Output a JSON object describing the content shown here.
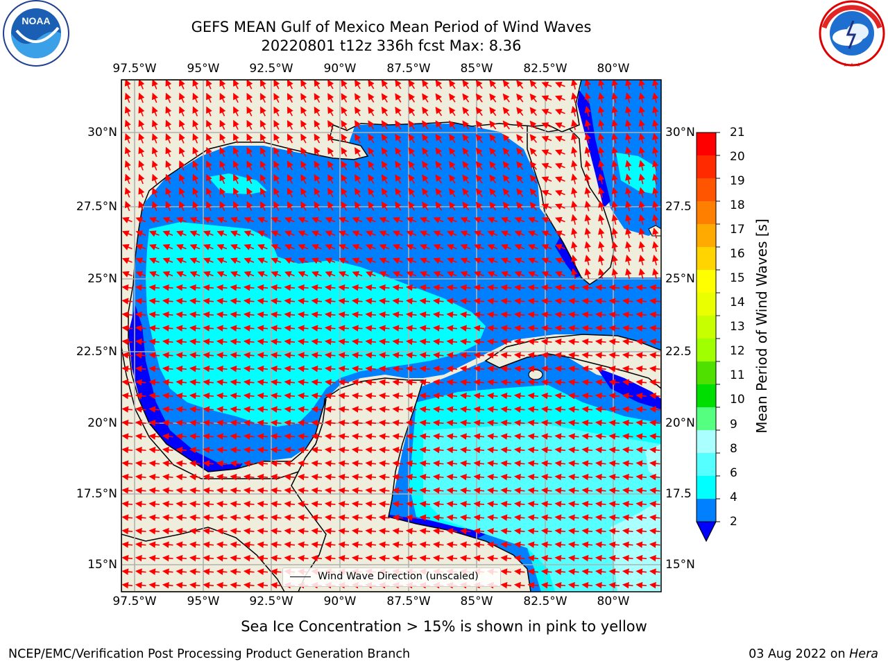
{
  "header": {
    "title_line1": "GEFS MEAN Gulf of Mexico Mean Period of Wind Waves",
    "title_line2": "20220801 t12z 336h fcst   Max: 8.36"
  },
  "logos": {
    "noaa_text": "NOAA",
    "noaa_ring_text": "NATIONAL OCEANIC AND ATMOSPHERIC ADMINISTRATION · U.S. DEPARTMENT OF COMMERCE",
    "nws_ring_text": "NATIONAL WEATHER SERVICE"
  },
  "axes": {
    "longitude_ticks": [
      "97.5°W",
      "95°W",
      "92.5°W",
      "90°W",
      "87.5°W",
      "85°W",
      "82.5°W",
      "80°W"
    ],
    "latitude_ticks_left": [
      "30°N",
      "27.5°N",
      "25°N",
      "22.5°N",
      "20°N",
      "17.5°N",
      "15°N"
    ],
    "latitude_ticks_right": [
      "30°N",
      "27.5",
      "25°N",
      "22.5",
      "20°N",
      "17.5",
      "15°N"
    ]
  },
  "colorbar": {
    "title": "Mean Period of Wind Waves [s]",
    "labels": [
      "21",
      "20",
      "19",
      "18",
      "17",
      "16",
      "15",
      "14",
      "13",
      "12",
      "11",
      "10",
      "9",
      "8",
      "6",
      "4",
      "2"
    ],
    "colors_top_to_bottom": [
      "#ff0000",
      "#ff2a00",
      "#ff5500",
      "#ff8000",
      "#ffaa00",
      "#ffd400",
      "#ffff00",
      "#eaff00",
      "#c8ff00",
      "#a0ff00",
      "#50e000",
      "#00dd00",
      "#55ff80",
      "#aaffff",
      "#55ffff",
      "#00ffff",
      "#0080ff"
    ],
    "extend_color": "#0000ff"
  },
  "map": {
    "colors": {
      "land": "#efeddc",
      "period_2_4": "#0080ff",
      "period_4_6": "#00ffff",
      "period_6_8": "#55ffff",
      "period_8_9": "#aaffff",
      "period_below_2": "#0000ff",
      "arrow": "#ff0000",
      "grid": "#b0b0b0"
    },
    "arrow_field_description": "predominantly easterly wind waves"
  },
  "legend": {
    "label": "Wind Wave Direction (unscaled)"
  },
  "note": "Sea Ice Concentration > 15% is shown in pink to yellow",
  "footer": {
    "left": "NCEP/EMC/Verification Post Processing Product Generation Branch",
    "right_date": "03 Aug 2022 on ",
    "right_machine": "Hera"
  }
}
